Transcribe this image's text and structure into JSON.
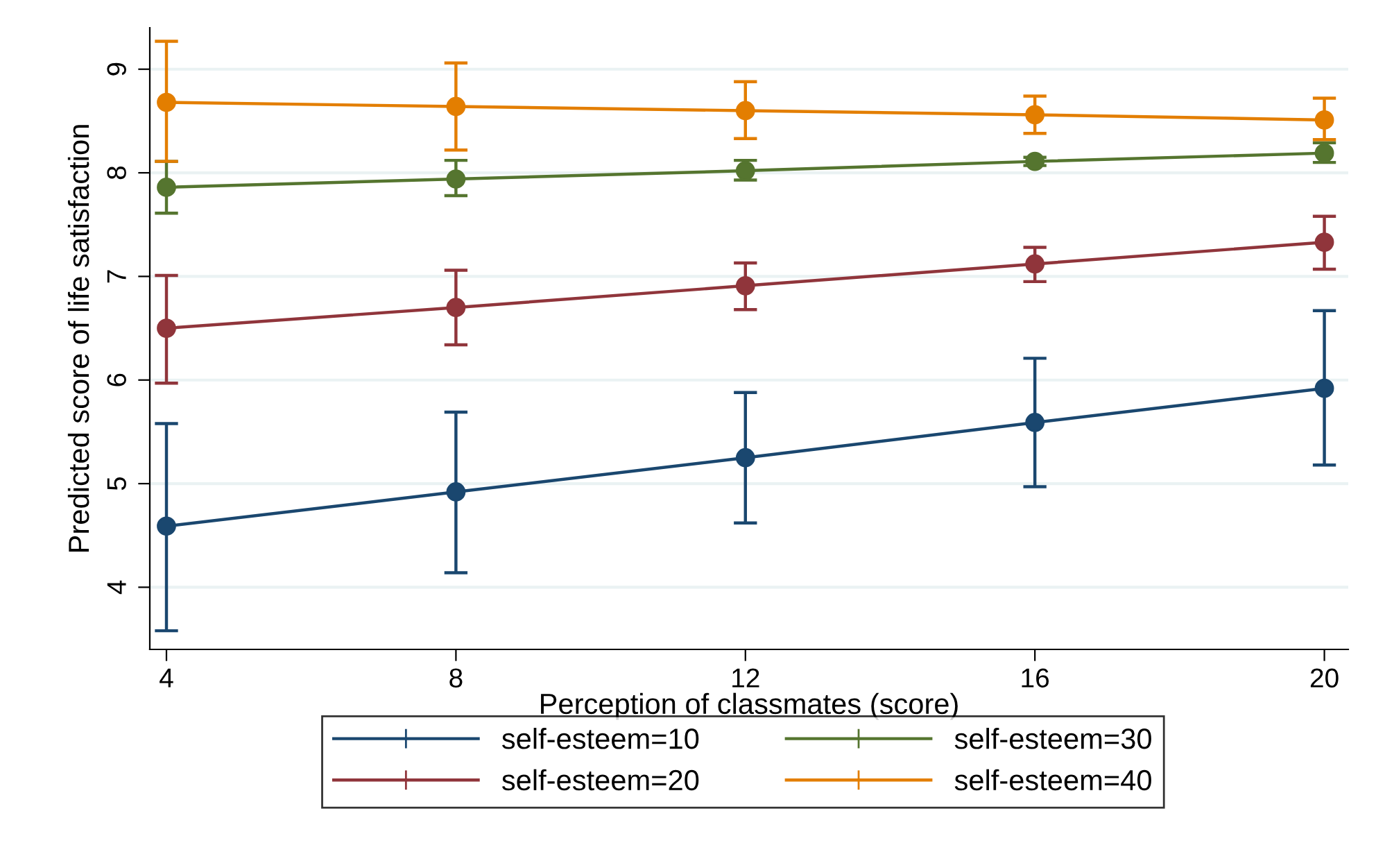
{
  "chart_data": {
    "type": "line",
    "xlabel": "Perception of classmates (score)",
    "ylabel": "Predicted score of life satisfaction",
    "x": [
      4,
      8,
      12,
      16,
      20
    ],
    "xlim": [
      3.77,
      20.33
    ],
    "xticks": [
      4,
      8,
      12,
      16,
      20
    ],
    "ylim": [
      3.4,
      9.4
    ],
    "yticks": [
      4,
      5,
      6,
      7,
      8,
      9
    ],
    "grid": "y",
    "legend": "bottom",
    "marker": "circle",
    "line_style": "solid",
    "series": [
      {
        "name": "self-esteem=10",
        "color": "#1a476f",
        "values": [
          4.59,
          4.92,
          5.25,
          5.59,
          5.92
        ],
        "errors": [
          [
            3.58,
            5.58
          ],
          [
            4.14,
            5.69
          ],
          [
            4.62,
            5.88
          ],
          [
            4.97,
            6.21
          ],
          [
            5.18,
            6.67
          ]
        ]
      },
      {
        "name": "self-esteem=20",
        "color": "#90353b",
        "values": [
          6.5,
          6.7,
          6.91,
          7.12,
          7.33
        ],
        "errors": [
          [
            5.97,
            7.01
          ],
          [
            6.34,
            7.06
          ],
          [
            6.68,
            7.13
          ],
          [
            6.95,
            7.28
          ],
          [
            7.07,
            7.58
          ]
        ]
      },
      {
        "name": "self-esteem=30",
        "color": "#55752f",
        "values": [
          7.86,
          7.94,
          8.02,
          8.11,
          8.19
        ],
        "errors": [
          [
            7.61,
            8.11
          ],
          [
            7.78,
            8.12
          ],
          [
            7.93,
            8.12
          ],
          [
            8.07,
            8.15
          ],
          [
            8.1,
            8.29
          ]
        ]
      },
      {
        "name": "self-esteem=40",
        "color": "#e37e00",
        "values": [
          8.68,
          8.64,
          8.6,
          8.56,
          8.51
        ],
        "errors": [
          [
            8.11,
            9.27
          ],
          [
            8.22,
            9.06
          ],
          [
            8.33,
            8.88
          ],
          [
            8.38,
            8.74
          ],
          [
            8.32,
            8.72
          ]
        ]
      }
    ]
  }
}
